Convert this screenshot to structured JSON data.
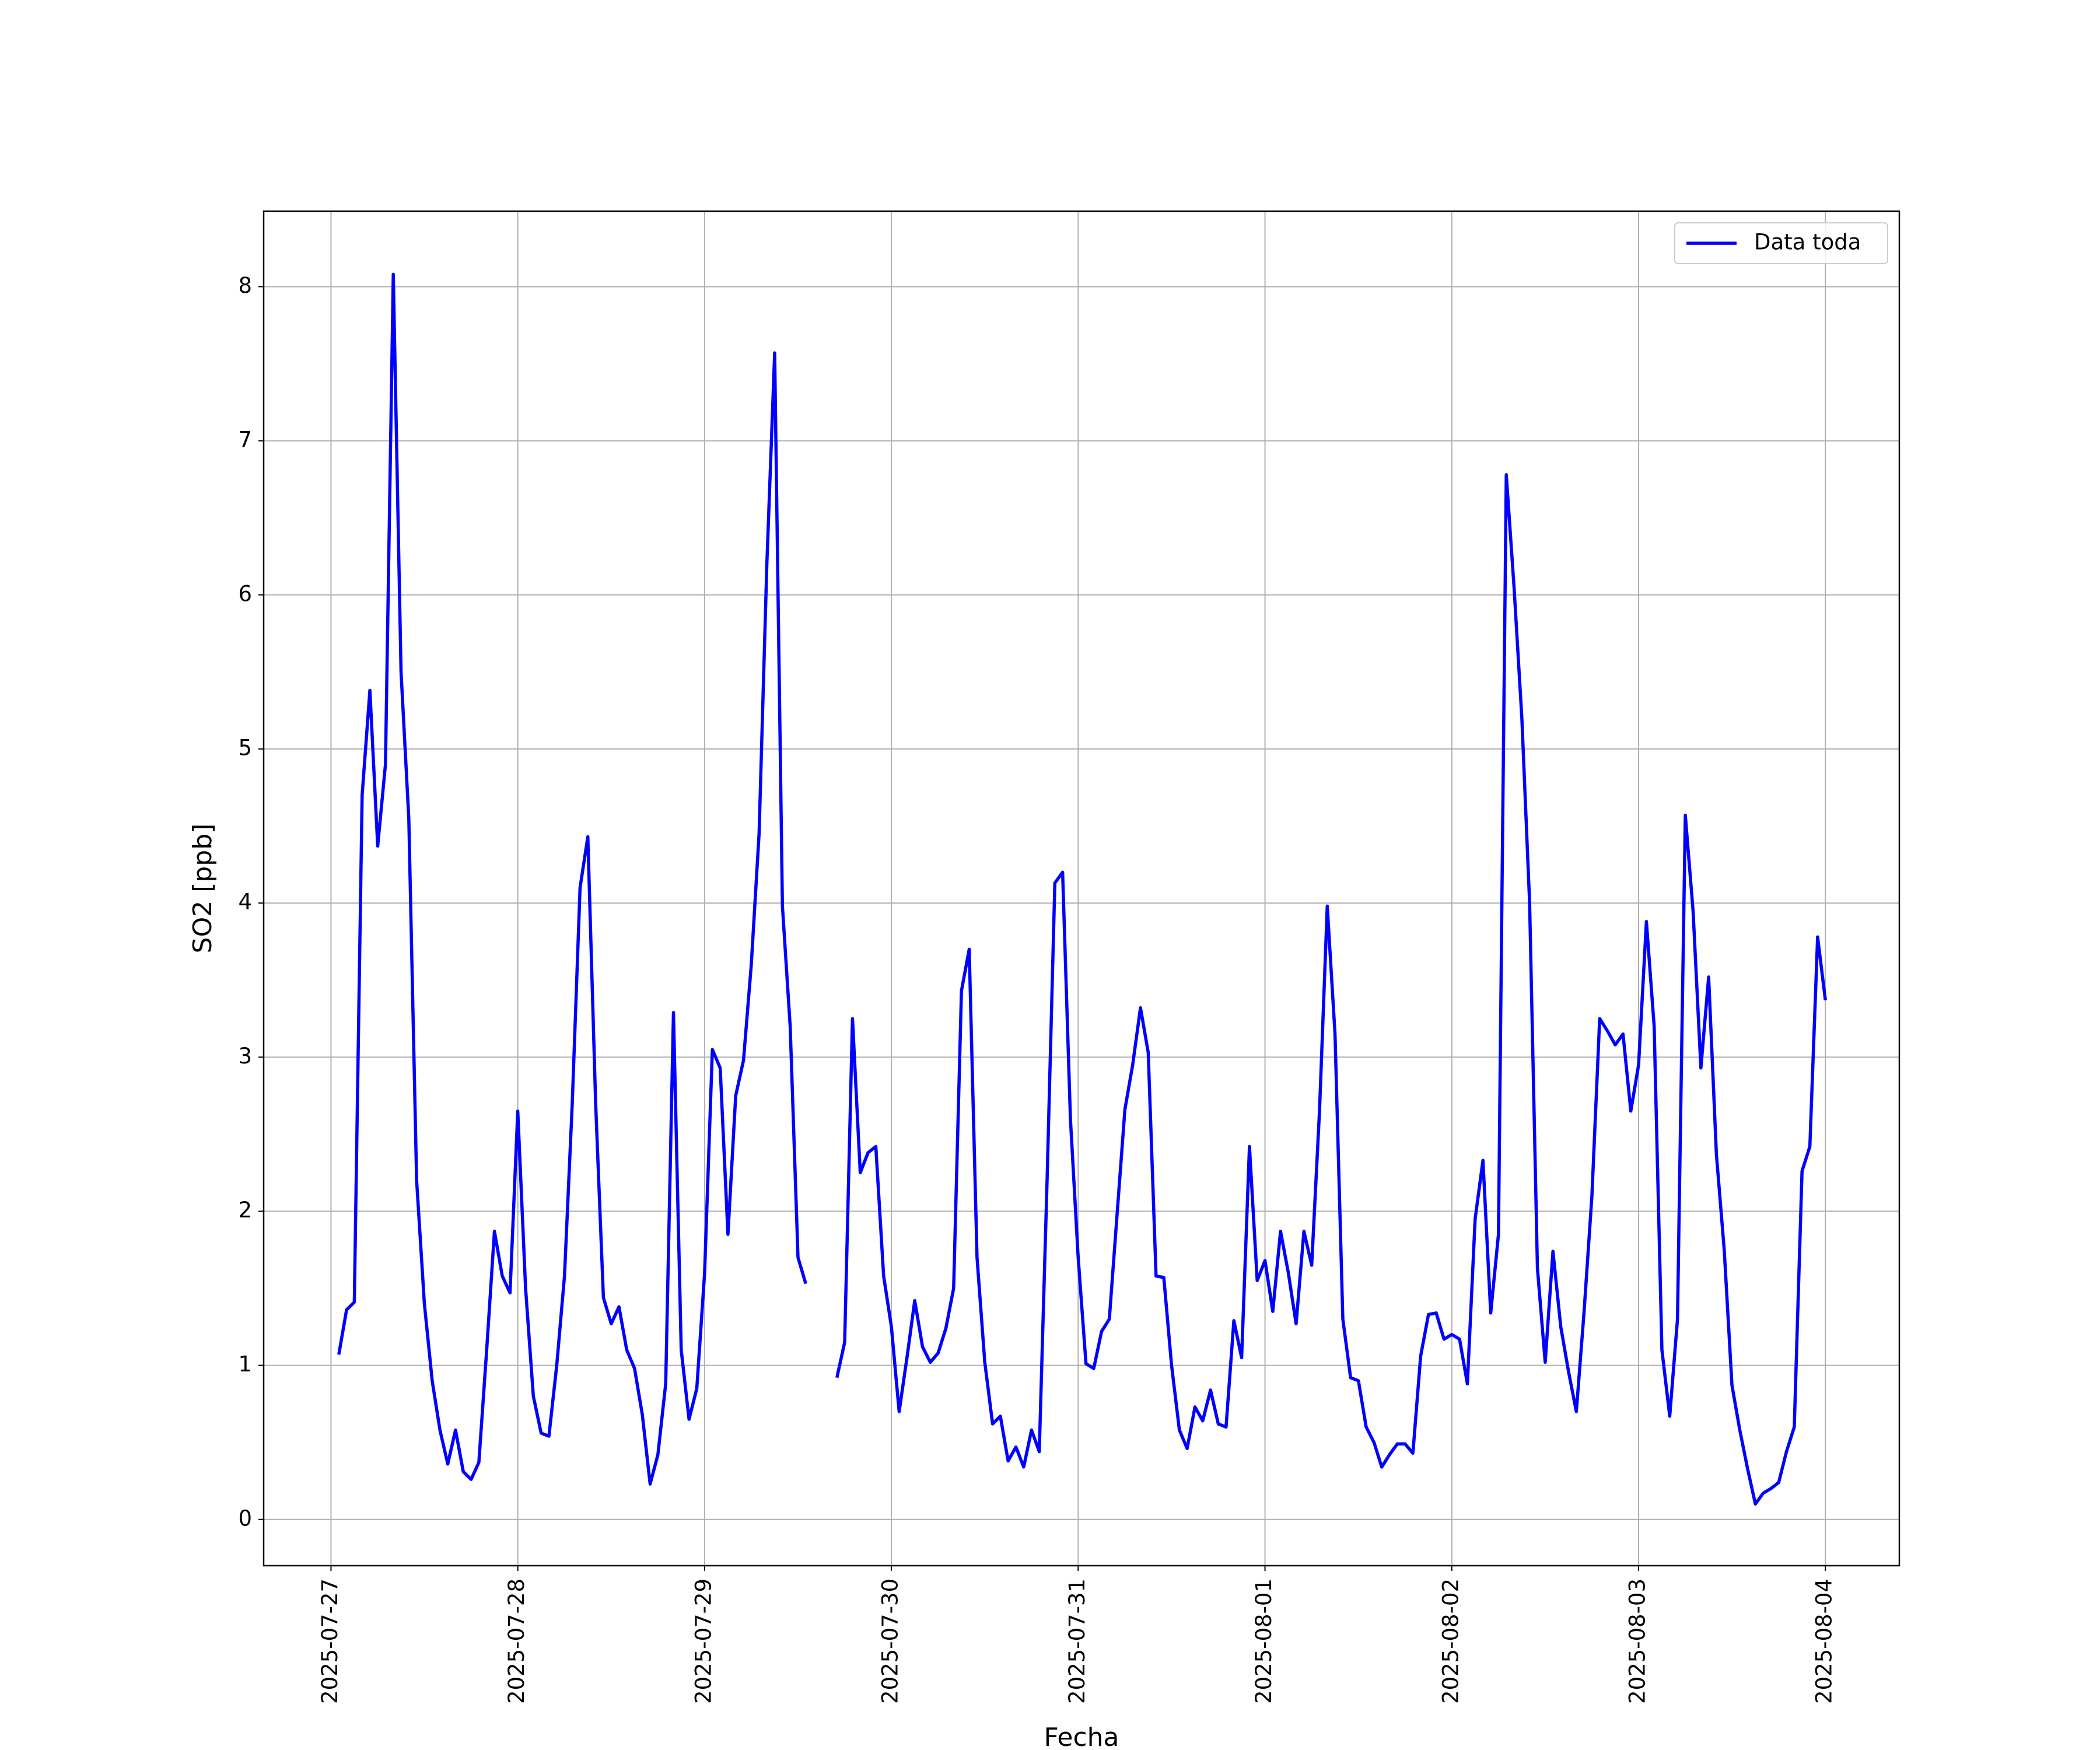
{
  "chart_data": {
    "type": "line",
    "xlabel": "Fecha",
    "ylabel": "SO2 [ppb]",
    "x": [
      "2025-07-27 01:00",
      "2025-07-27 02:00",
      "2025-07-27 03:00",
      "2025-07-27 04:00",
      "2025-07-27 05:00",
      "2025-07-27 06:00",
      "2025-07-27 07:00",
      "2025-07-27 08:00",
      "2025-07-27 09:00",
      "2025-07-27 10:00",
      "2025-07-27 11:00",
      "2025-07-27 12:00",
      "2025-07-27 13:00",
      "2025-07-27 14:00",
      "2025-07-27 15:00",
      "2025-07-27 16:00",
      "2025-07-27 17:00",
      "2025-07-27 18:00",
      "2025-07-27 19:00",
      "2025-07-27 20:00",
      "2025-07-27 21:00",
      "2025-07-27 22:00",
      "2025-07-27 23:00",
      "2025-07-28 00:00",
      "2025-07-28 01:00",
      "2025-07-28 02:00",
      "2025-07-28 03:00",
      "2025-07-28 04:00",
      "2025-07-28 05:00",
      "2025-07-28 06:00",
      "2025-07-28 07:00",
      "2025-07-28 08:00",
      "2025-07-28 09:00",
      "2025-07-28 10:00",
      "2025-07-28 11:00",
      "2025-07-28 12:00",
      "2025-07-28 13:00",
      "2025-07-28 14:00",
      "2025-07-28 15:00",
      "2025-07-28 16:00",
      "2025-07-28 17:00",
      "2025-07-28 18:00",
      "2025-07-28 19:00",
      "2025-07-28 20:00",
      "2025-07-28 21:00",
      "2025-07-28 22:00",
      "2025-07-28 23:00",
      "2025-07-29 00:00",
      "2025-07-29 01:00",
      "2025-07-29 02:00",
      "2025-07-29 03:00",
      "2025-07-29 04:00",
      "2025-07-29 05:00",
      "2025-07-29 06:00",
      "2025-07-29 07:00",
      "2025-07-29 08:00",
      "2025-07-29 09:00",
      "2025-07-29 10:00",
      "2025-07-29 11:00",
      "2025-07-29 12:00",
      "2025-07-29 13:00",
      "2025-07-29 14:00",
      "2025-07-29 15:00",
      "2025-07-29 16:00",
      "2025-07-29 17:00",
      "2025-07-29 18:00",
      "2025-07-29 19:00",
      "2025-07-29 20:00",
      "2025-07-29 21:00",
      "2025-07-29 22:00",
      "2025-07-29 23:00",
      "2025-07-30 00:00",
      "2025-07-30 01:00",
      "2025-07-30 02:00",
      "2025-07-30 03:00",
      "2025-07-30 04:00",
      "2025-07-30 05:00",
      "2025-07-30 06:00",
      "2025-07-30 07:00",
      "2025-07-30 08:00",
      "2025-07-30 09:00",
      "2025-07-30 10:00",
      "2025-07-30 11:00",
      "2025-07-30 12:00",
      "2025-07-30 13:00",
      "2025-07-30 14:00",
      "2025-07-30 15:00",
      "2025-07-30 16:00",
      "2025-07-30 17:00",
      "2025-07-30 18:00",
      "2025-07-30 19:00",
      "2025-07-30 20:00",
      "2025-07-30 21:00",
      "2025-07-30 22:00",
      "2025-07-30 23:00",
      "2025-07-31 00:00",
      "2025-07-31 01:00",
      "2025-07-31 02:00",
      "2025-07-31 03:00",
      "2025-07-31 04:00",
      "2025-07-31 05:00",
      "2025-07-31 06:00",
      "2025-07-31 07:00",
      "2025-07-31 08:00",
      "2025-07-31 09:00",
      "2025-07-31 10:00",
      "2025-07-31 11:00",
      "2025-07-31 12:00",
      "2025-07-31 13:00",
      "2025-07-31 14:00",
      "2025-07-31 15:00",
      "2025-07-31 16:00",
      "2025-07-31 17:00",
      "2025-07-31 18:00",
      "2025-07-31 19:00",
      "2025-07-31 20:00",
      "2025-07-31 21:00",
      "2025-07-31 22:00",
      "2025-07-31 23:00",
      "2025-08-01 00:00",
      "2025-08-01 01:00",
      "2025-08-01 02:00",
      "2025-08-01 03:00",
      "2025-08-01 04:00",
      "2025-08-01 05:00",
      "2025-08-01 06:00",
      "2025-08-01 07:00",
      "2025-08-01 08:00",
      "2025-08-01 09:00",
      "2025-08-01 10:00",
      "2025-08-01 11:00",
      "2025-08-01 12:00",
      "2025-08-01 13:00",
      "2025-08-01 14:00",
      "2025-08-01 15:00",
      "2025-08-01 16:00",
      "2025-08-01 17:00",
      "2025-08-01 18:00",
      "2025-08-01 19:00",
      "2025-08-01 20:00",
      "2025-08-01 21:00",
      "2025-08-01 22:00",
      "2025-08-01 23:00",
      "2025-08-02 00:00",
      "2025-08-02 01:00",
      "2025-08-02 02:00",
      "2025-08-02 03:00",
      "2025-08-02 04:00",
      "2025-08-02 05:00",
      "2025-08-02 06:00",
      "2025-08-02 07:00",
      "2025-08-02 08:00",
      "2025-08-02 09:00",
      "2025-08-02 10:00",
      "2025-08-02 11:00",
      "2025-08-02 12:00",
      "2025-08-02 13:00",
      "2025-08-02 14:00",
      "2025-08-02 15:00",
      "2025-08-02 16:00",
      "2025-08-02 17:00",
      "2025-08-02 18:00",
      "2025-08-02 19:00",
      "2025-08-02 20:00",
      "2025-08-02 21:00",
      "2025-08-02 22:00",
      "2025-08-02 23:00",
      "2025-08-03 00:00",
      "2025-08-03 01:00",
      "2025-08-03 02:00",
      "2025-08-03 03:00",
      "2025-08-03 04:00",
      "2025-08-03 05:00",
      "2025-08-03 06:00",
      "2025-08-03 07:00",
      "2025-08-03 08:00",
      "2025-08-03 09:00",
      "2025-08-03 10:00",
      "2025-08-03 11:00",
      "2025-08-03 12:00",
      "2025-08-03 13:00",
      "2025-08-03 14:00",
      "2025-08-03 15:00",
      "2025-08-03 16:00",
      "2025-08-03 17:00",
      "2025-08-03 18:00",
      "2025-08-03 19:00",
      "2025-08-03 20:00",
      "2025-08-03 21:00",
      "2025-08-03 22:00",
      "2025-08-03 23:00",
      "2025-08-04 00:00"
    ],
    "series": [
      {
        "name": "Data toda",
        "color": "#0000ff",
        "values": [
          1.07,
          1.36,
          1.41,
          4.7,
          5.38,
          4.37,
          4.9,
          8.08,
          5.5,
          4.55,
          2.2,
          1.4,
          0.9,
          0.58,
          0.36,
          0.58,
          0.31,
          0.26,
          0.37,
          1.1,
          1.87,
          1.58,
          1.47,
          2.65,
          1.5,
          0.8,
          0.56,
          0.54,
          1.0,
          1.58,
          2.7,
          4.1,
          4.43,
          2.7,
          1.44,
          1.27,
          1.38,
          1.1,
          0.98,
          0.68,
          0.23,
          0.42,
          0.88,
          3.29,
          1.1,
          0.65,
          0.85,
          1.6,
          3.05,
          2.93,
          1.85,
          2.75,
          2.98,
          3.6,
          4.45,
          6.2,
          7.57,
          3.98,
          3.2,
          1.7,
          1.53,
          null,
          null,
          null,
          0.92,
          1.15,
          3.25,
          2.25,
          2.38,
          2.42,
          1.58,
          1.25,
          0.7,
          1.05,
          1.42,
          1.12,
          1.02,
          1.08,
          1.24,
          1.5,
          3.43,
          3.7,
          1.7,
          1.02,
          0.62,
          0.67,
          0.38,
          0.47,
          0.34,
          0.58,
          0.44,
          2.2,
          4.13,
          4.2,
          2.6,
          1.7,
          1.01,
          0.98,
          1.22,
          1.3,
          1.98,
          2.66,
          2.95,
          3.32,
          3.03,
          1.58,
          1.57,
          1.0,
          0.58,
          0.46,
          0.73,
          0.64,
          0.84,
          0.62,
          0.6,
          1.29,
          1.05,
          2.42,
          1.55,
          1.68,
          1.35,
          1.87,
          1.6,
          1.27,
          1.87,
          1.65,
          2.65,
          3.98,
          3.15,
          1.3,
          0.92,
          0.9,
          0.6,
          0.5,
          0.34,
          0.42,
          0.49,
          0.49,
          0.43,
          1.06,
          1.33,
          1.34,
          1.17,
          1.2,
          1.17,
          0.88,
          1.95,
          2.33,
          1.34,
          1.85,
          6.78,
          6.05,
          5.2,
          4.0,
          1.63,
          1.02,
          1.74,
          1.25,
          0.96,
          0.7,
          1.35,
          2.1,
          3.25,
          3.17,
          3.08,
          3.15,
          2.65,
          2.95,
          3.88,
          3.2,
          1.1,
          0.67,
          1.3,
          4.57,
          3.95,
          2.93,
          3.52,
          2.37,
          1.75,
          0.87,
          0.58,
          0.33,
          0.1,
          0.17,
          0.2,
          0.24,
          0.44,
          0.6,
          2.26,
          2.42,
          3.78,
          3.37
        ]
      }
    ],
    "xlim": [
      "2025-07-26 15:21",
      "2025-08-04 09:30"
    ],
    "xticks": [
      "2025-07-27",
      "2025-07-28",
      "2025-07-29",
      "2025-07-30",
      "2025-07-31",
      "2025-08-01",
      "2025-08-02",
      "2025-08-03",
      "2025-08-04"
    ],
    "ylim": [
      -0.3,
      8.49
    ],
    "yticks": [
      0,
      1,
      2,
      3,
      4,
      5,
      6,
      7,
      8
    ],
    "grid": true,
    "legend": "upper right"
  }
}
